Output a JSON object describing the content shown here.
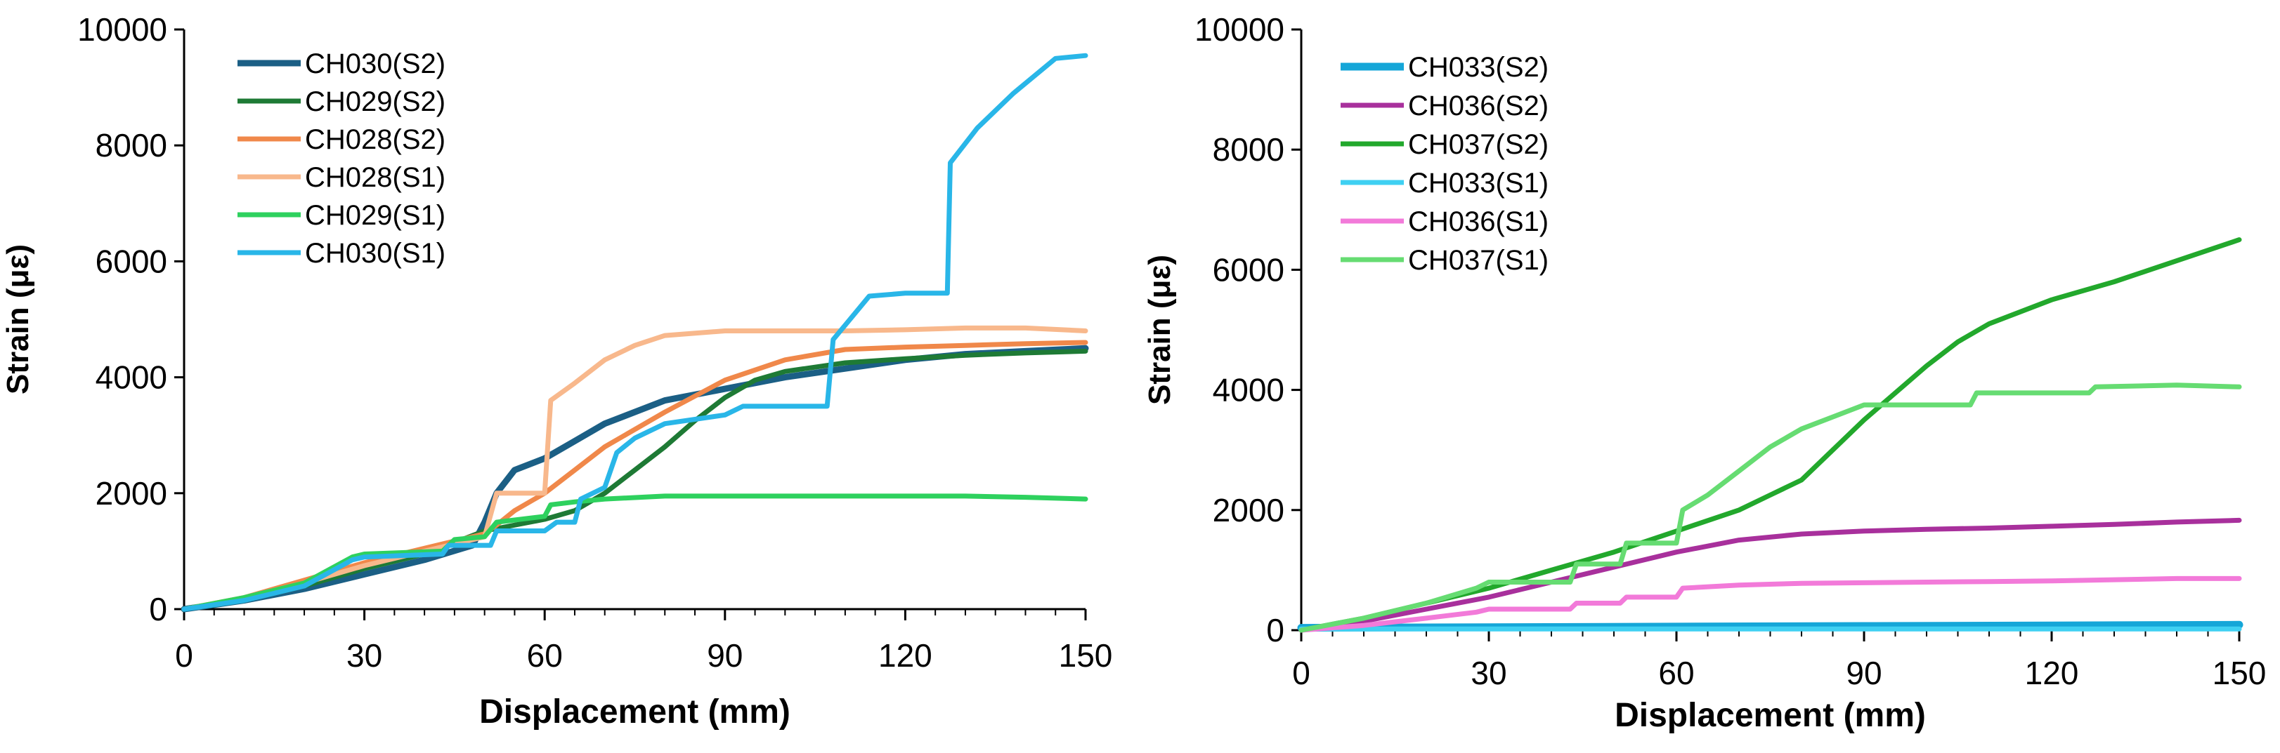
{
  "chart_data": [
    {
      "type": "line",
      "xlabel": "Displacement (mm)",
      "ylabel": "Strain (με)",
      "xlim": [
        0,
        150
      ],
      "ylim": [
        0,
        10000
      ],
      "xticks": [
        "0",
        "30",
        "60",
        "90",
        "120",
        "150"
      ],
      "yticks": [
        "0",
        "2000",
        "4000",
        "6000",
        "8000",
        "10000"
      ],
      "grid": false,
      "legend": "top-left",
      "series": [
        {
          "name": "CH030(S2)",
          "color": "#1b5f85",
          "width": 9,
          "x": [
            0,
            10,
            20,
            30,
            40,
            48,
            50,
            52,
            55,
            60,
            65,
            70,
            80,
            90,
            100,
            110,
            120,
            130,
            140,
            150
          ],
          "y": [
            0,
            150,
            350,
            600,
            850,
            1100,
            1500,
            2000,
            2400,
            2600,
            2900,
            3200,
            3600,
            3800,
            4000,
            4150,
            4300,
            4400,
            4450,
            4500
          ]
        },
        {
          "name": "CH029(S2)",
          "color": "#1e7a35",
          "width": 7,
          "x": [
            0,
            10,
            20,
            30,
            40,
            50,
            60,
            65,
            70,
            75,
            80,
            85,
            90,
            95,
            100,
            110,
            120,
            130,
            140,
            150
          ],
          "y": [
            0,
            150,
            400,
            700,
            950,
            1350,
            1550,
            1700,
            2000,
            2400,
            2800,
            3250,
            3650,
            3950,
            4100,
            4250,
            4320,
            4380,
            4420,
            4450
          ]
        },
        {
          "name": "CH028(S2)",
          "color": "#f0884a",
          "width": 7,
          "x": [
            0,
            10,
            20,
            30,
            40,
            50,
            52,
            55,
            60,
            65,
            70,
            80,
            90,
            100,
            110,
            120,
            130,
            140,
            150
          ],
          "y": [
            0,
            200,
            500,
            800,
            1050,
            1300,
            1450,
            1700,
            2000,
            2400,
            2800,
            3400,
            3950,
            4300,
            4480,
            4520,
            4550,
            4580,
            4600
          ]
        },
        {
          "name": "CH028(S1)",
          "color": "#f8b88c",
          "width": 7,
          "x": [
            0,
            10,
            20,
            30,
            40,
            50,
            52,
            55,
            60,
            61,
            65,
            70,
            75,
            80,
            90,
            100,
            110,
            120,
            130,
            140,
            150
          ],
          "y": [
            0,
            200,
            450,
            750,
            1000,
            1250,
            2000,
            2000,
            2000,
            3600,
            3900,
            4300,
            4550,
            4720,
            4800,
            4800,
            4800,
            4820,
            4850,
            4850,
            4800
          ]
        },
        {
          "name": "CH029(S1)",
          "color": "#2ed15e",
          "width": 7,
          "x": [
            0,
            10,
            20,
            28,
            30,
            43,
            45,
            50,
            52,
            60,
            61,
            65,
            70,
            80,
            90,
            100,
            110,
            120,
            130,
            140,
            150
          ],
          "y": [
            0,
            200,
            450,
            900,
            950,
            1000,
            1200,
            1250,
            1500,
            1600,
            1800,
            1850,
            1900,
            1950,
            1950,
            1950,
            1950,
            1950,
            1950,
            1930,
            1900
          ]
        },
        {
          "name": "CH030(S1)",
          "color": "#29b6e8",
          "width": 7,
          "x": [
            0,
            10,
            20,
            28,
            30,
            43,
            44,
            51,
            52,
            60,
            62,
            65,
            66,
            70,
            72,
            75,
            80,
            90,
            93,
            100,
            107,
            108,
            110,
            114,
            120,
            127,
            127.5,
            132,
            138,
            145,
            150
          ],
          "y": [
            0,
            150,
            400,
            850,
            900,
            950,
            1100,
            1100,
            1350,
            1350,
            1500,
            1500,
            1900,
            2100,
            2700,
            2950,
            3200,
            3350,
            3500,
            3500,
            3500,
            4650,
            4900,
            5400,
            5450,
            5450,
            7700,
            8300,
            8900,
            9500,
            9550
          ]
        }
      ]
    },
    {
      "type": "line",
      "xlabel": "Displacement (mm)",
      "ylabel": "Strain (με)",
      "xlim": [
        0,
        150
      ],
      "ylim": [
        0,
        10000
      ],
      "xticks": [
        "0",
        "30",
        "60",
        "90",
        "120",
        "150"
      ],
      "yticks": [
        "0",
        "2000",
        "4000",
        "6000",
        "8000",
        "10000"
      ],
      "grid": false,
      "legend": "top-left",
      "series": [
        {
          "name": "CH033(S2)",
          "color": "#15a6d8",
          "width": 11,
          "x": [
            0,
            30,
            60,
            90,
            120,
            150
          ],
          "y": [
            40,
            50,
            60,
            70,
            80,
            90
          ]
        },
        {
          "name": "CH036(S2)",
          "color": "#a8309c",
          "width": 7,
          "x": [
            0,
            10,
            20,
            30,
            40,
            50,
            60,
            70,
            80,
            90,
            100,
            110,
            120,
            130,
            140,
            150
          ],
          "y": [
            0,
            150,
            350,
            550,
            800,
            1050,
            1300,
            1500,
            1600,
            1650,
            1680,
            1700,
            1730,
            1760,
            1800,
            1830
          ]
        },
        {
          "name": "CH037(S2)",
          "color": "#22a82c",
          "width": 7,
          "x": [
            0,
            10,
            20,
            30,
            40,
            50,
            60,
            70,
            75,
            80,
            85,
            90,
            95,
            100,
            105,
            110,
            120,
            130,
            140,
            150
          ],
          "y": [
            0,
            200,
            450,
            700,
            1000,
            1300,
            1650,
            2000,
            2250,
            2500,
            3000,
            3500,
            3950,
            4400,
            4800,
            5100,
            5500,
            5800,
            6150,
            6500
          ]
        },
        {
          "name": "CH033(S1)",
          "color": "#3fd0f2",
          "width": 7,
          "x": [
            0,
            150
          ],
          "y": [
            20,
            20
          ]
        },
        {
          "name": "CH036(S1)",
          "color": "#f27ad9",
          "width": 7,
          "x": [
            0,
            10,
            20,
            28,
            30,
            43,
            44,
            51,
            52,
            60,
            61,
            70,
            80,
            90,
            100,
            110,
            120,
            130,
            140,
            150
          ],
          "y": [
            0,
            80,
            200,
            300,
            350,
            350,
            450,
            450,
            550,
            550,
            700,
            750,
            780,
            790,
            800,
            810,
            820,
            840,
            860,
            860
          ]
        },
        {
          "name": "CH037(S1)",
          "color": "#66dc72",
          "width": 7,
          "x": [
            0,
            10,
            20,
            28,
            30,
            43,
            44,
            51,
            52,
            60,
            61,
            65,
            70,
            75,
            80,
            85,
            90,
            107,
            108,
            126,
            127,
            140,
            150
          ],
          "y": [
            0,
            200,
            450,
            700,
            800,
            800,
            1100,
            1100,
            1450,
            1450,
            2000,
            2250,
            2650,
            3050,
            3350,
            3550,
            3750,
            3750,
            3950,
            3950,
            4050,
            4080,
            4050
          ]
        }
      ]
    }
  ]
}
